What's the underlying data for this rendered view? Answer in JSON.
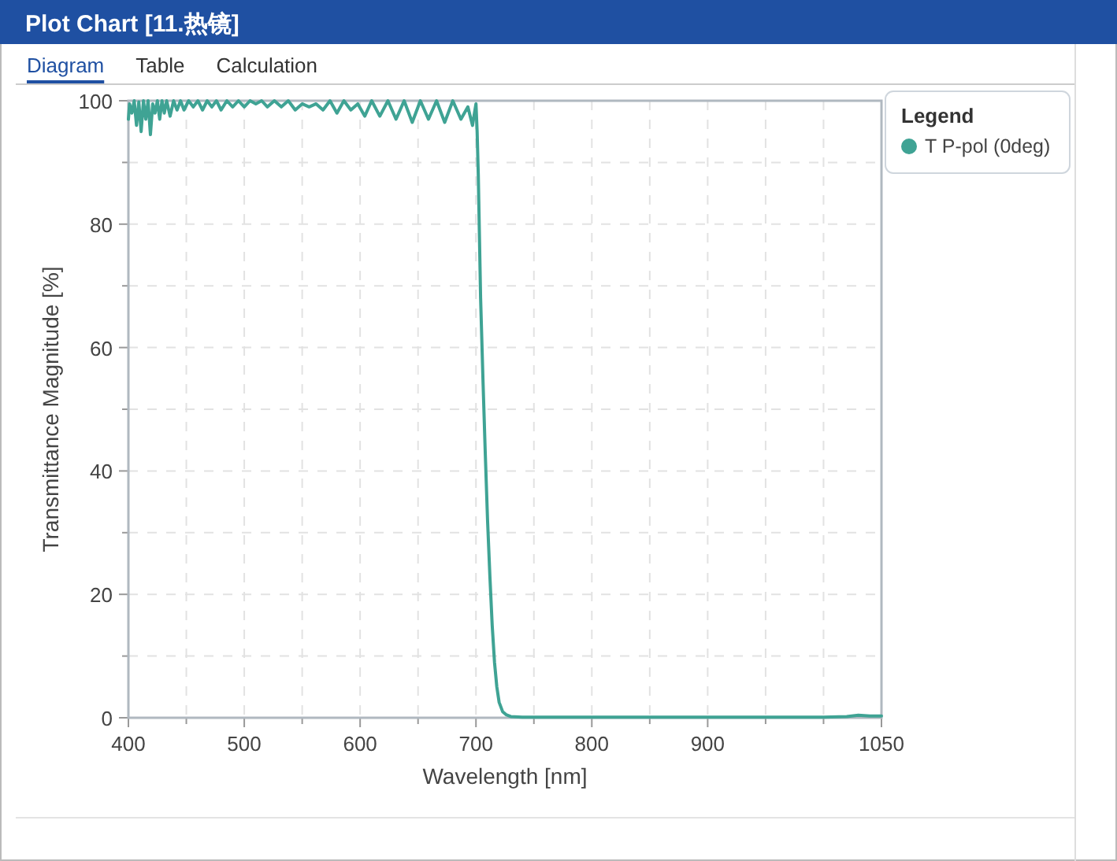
{
  "chart_data": {
    "type": "line",
    "title": "Plot Chart [11.热镜]",
    "annotations": [
      "Diagram",
      "Table",
      "Calculation"
    ],
    "xlabel": "Wavelength [nm]",
    "ylabel": "Transmittance Magnitude [%]",
    "legend_title": "Legend",
    "legend": "top right",
    "grid": true,
    "line_style": "solid",
    "xlim": [
      400,
      1050
    ],
    "xticks": [
      400,
      {
        "value": 450,
        "label": null
      },
      500,
      {
        "value": 550,
        "label": null
      },
      600,
      {
        "value": 650,
        "label": null
      },
      700,
      {
        "value": 750,
        "label": null
      },
      800,
      {
        "value": 850,
        "label": null
      },
      900,
      {
        "value": 950,
        "label": null
      },
      {
        "value": 1000,
        "label": null
      },
      1050
    ],
    "ylim": [
      0,
      100
    ],
    "yticks": [
      0,
      {
        "value": 10,
        "label": null
      },
      20,
      {
        "value": 30,
        "label": null
      },
      40,
      {
        "value": 50,
        "label": null
      },
      60,
      {
        "value": 70,
        "label": null
      },
      80,
      {
        "value": 90,
        "label": null
      },
      100
    ],
    "series": [
      {
        "name": "T P-pol (0deg)",
        "color": "#3fa394",
        "x": [
          400,
          401,
          403,
          405,
          407,
          409,
          411,
          413,
          415,
          417,
          419,
          421,
          423,
          425,
          427,
          429,
          431,
          433,
          436,
          439,
          442,
          445,
          448,
          452,
          456,
          460,
          464,
          468,
          472,
          476,
          480,
          485,
          490,
          495,
          500,
          505,
          510,
          515,
          520,
          526,
          532,
          538,
          544,
          550,
          556,
          562,
          568,
          574,
          580,
          586,
          592,
          598,
          604,
          610,
          617,
          624,
          631,
          638,
          645,
          652,
          659,
          666,
          673,
          680,
          687,
          693,
          697,
          700,
          701,
          702,
          703,
          704,
          706,
          708,
          710,
          712,
          714,
          716,
          718,
          720,
          723,
          726,
          730,
          740,
          760,
          800,
          900,
          1000,
          1020,
          1030,
          1040,
          1050
        ],
        "values": [
          97,
          99.5,
          98,
          100,
          96,
          99.8,
          95,
          100,
          97,
          100,
          94.5,
          99.5,
          98,
          100,
          97,
          100,
          98,
          100,
          97.5,
          100,
          98.5,
          100,
          98.5,
          100,
          99,
          100,
          98.5,
          100,
          99,
          100,
          98.5,
          100,
          99,
          100,
          99,
          100,
          99.5,
          100,
          99,
          100,
          99,
          100,
          98.5,
          99.5,
          99,
          99.5,
          98.5,
          100,
          98,
          100,
          98.5,
          99.5,
          97.5,
          100,
          97.5,
          100,
          97,
          100,
          96.5,
          100,
          97,
          100,
          96.5,
          100,
          97,
          99,
          96,
          99.5,
          95,
          88,
          78,
          68,
          55,
          43,
          32,
          23,
          15,
          9,
          5,
          2.5,
          1,
          0.5,
          0.2,
          0.1,
          0.1,
          0.1,
          0.1,
          0.1,
          0.2,
          0.4,
          0.3,
          0.3
        ]
      }
    ]
  }
}
